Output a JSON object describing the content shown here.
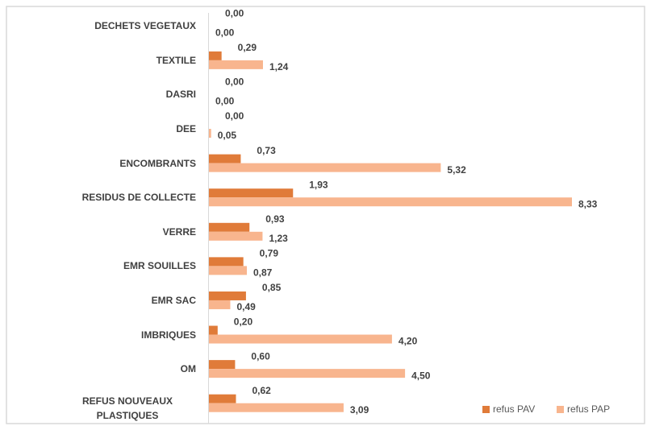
{
  "chart_data": {
    "type": "bar",
    "orientation": "horizontal",
    "categories": [
      "DECHETS VEGETAUX",
      "TEXTILE",
      "DASRI",
      "DEE",
      "ENCOMBRANTS",
      "RESIDUS DE COLLECTE",
      "VERRE",
      "EMR SOUILLES",
      "EMR SAC",
      "IMBRIQUES",
      "OM",
      "REFUS NOUVEAUX PLASTIQUES"
    ],
    "series": [
      {
        "name": "refus PAV",
        "color": "#e07b39",
        "values": [
          0,
          0.29,
          0,
          0,
          0.73,
          1.93,
          0.93,
          0.79,
          0.85,
          0.2,
          0.6,
          0.62
        ],
        "value_labels": [
          "0,00",
          "0,29",
          "0,00",
          "0,00",
          "0,73",
          "1,93",
          "0,93",
          "0,79",
          "0,85",
          "0,20",
          "0,60",
          "0,62"
        ]
      },
      {
        "name": "refus PAP",
        "color": "#f8b58e",
        "values": [
          0,
          1.24,
          0,
          0.05,
          5.32,
          8.33,
          1.23,
          0.87,
          0.49,
          4.2,
          4.5,
          3.09
        ],
        "value_labels": [
          "0,00",
          "1,24",
          "0,00",
          "0,05",
          "5,32",
          "8,33",
          "1,23",
          "0,87",
          "0,49",
          "4,20",
          "4,50",
          "3,09"
        ]
      }
    ],
    "legend": "bottom-right"
  }
}
